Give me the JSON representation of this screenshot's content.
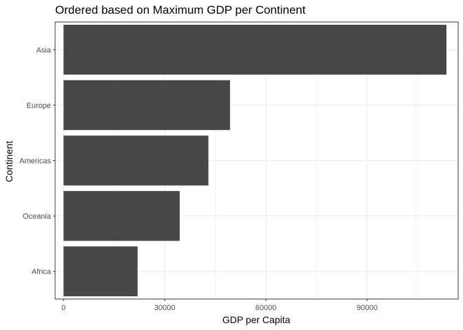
{
  "chart_data": {
    "type": "bar",
    "orientation": "horizontal",
    "title": "Ordered based on Maximum GDP per Continent",
    "xlabel": "GDP per Capita",
    "ylabel": "Continent",
    "categories": [
      "Asia",
      "Europe",
      "Americas",
      "Oceania",
      "Africa"
    ],
    "values": [
      113523,
      49357,
      42952,
      34435,
      21951
    ],
    "xlim": [
      -2500,
      117000
    ],
    "xticks": [
      0,
      30000,
      60000,
      90000
    ],
    "xtick_labels": [
      "0",
      "30000",
      "60000",
      "90000"
    ],
    "grid": true,
    "bar_color": "#474747",
    "grid_color": "#ebebeb",
    "panel_border_color": "#333333"
  }
}
